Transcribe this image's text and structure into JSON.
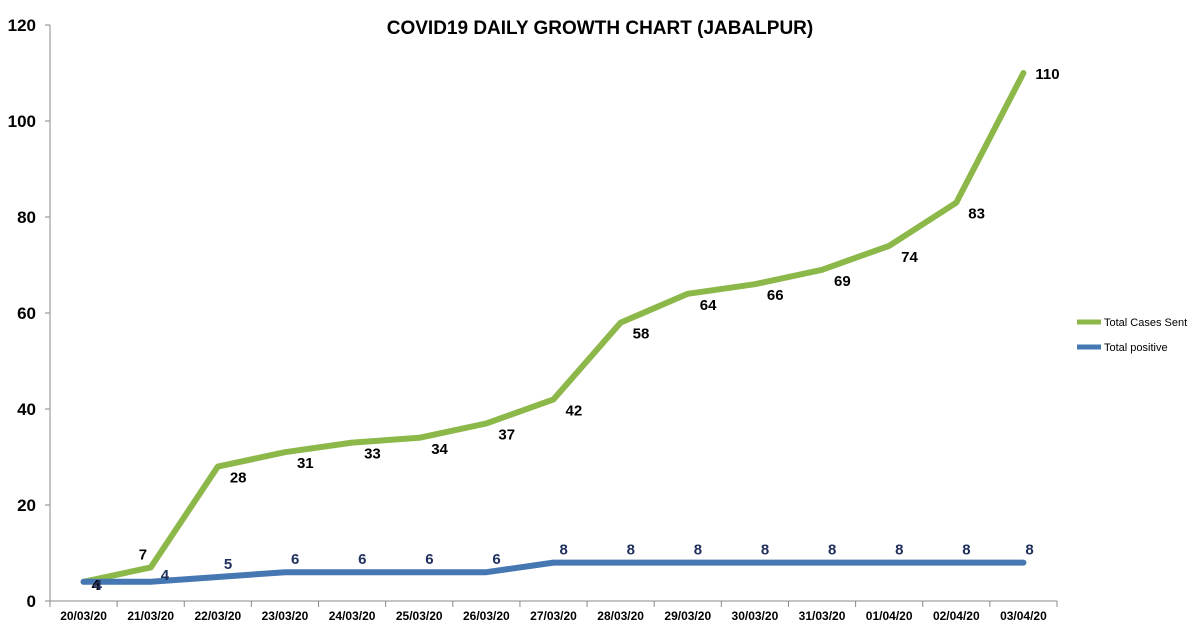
{
  "chart_data": {
    "type": "line",
    "title": "COVID19 DAILY GROWTH CHART (JABALPUR)",
    "categories": [
      "20/03/20",
      "21/03/20",
      "22/03/20",
      "23/03/20",
      "24/03/20",
      "25/03/20",
      "26/03/20",
      "27/03/20",
      "28/03/20",
      "29/03/20",
      "30/03/20",
      "31/03/20",
      "01/04/20",
      "02/04/20",
      "03/04/20"
    ],
    "series": [
      {
        "name": "Total Cases Sent",
        "color": "#8cb84a",
        "values": [
          4,
          7,
          28,
          31,
          33,
          34,
          37,
          42,
          58,
          64,
          66,
          69,
          74,
          83,
          110
        ]
      },
      {
        "name": "Total positive",
        "color": "#4577b2",
        "values": [
          4,
          4,
          5,
          6,
          6,
          6,
          6,
          8,
          8,
          8,
          8,
          8,
          8,
          8,
          8
        ]
      }
    ],
    "ylim": [
      0,
      120
    ],
    "yticks": [
      "0",
      "20",
      "40",
      "60",
      "80",
      "100",
      "120"
    ],
    "grid": false,
    "legend": "right"
  }
}
